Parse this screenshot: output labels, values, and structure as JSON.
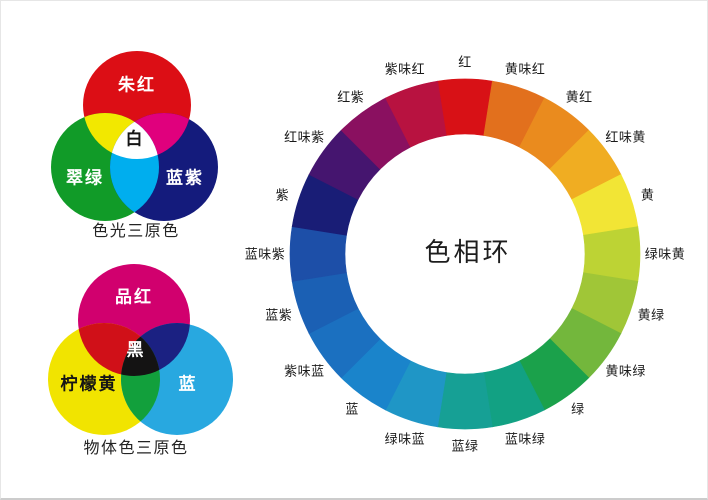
{
  "rgb_venn": {
    "caption": "色光三原色",
    "circle_labels": {
      "red": "朱红",
      "green": "翠绿",
      "blue": "蓝紫"
    },
    "center_label": "白",
    "colors": {
      "red": "#dc0e15",
      "green": "#119b28",
      "blue": "#141b7c",
      "red_green": "#f2e800",
      "red_blue": "#e0007d",
      "green_blue": "#00aeee",
      "center": "#ffffff"
    }
  },
  "cmy_venn": {
    "caption": "物体色三原色",
    "circle_labels": {
      "magenta": "品红",
      "yellow": "柠檬黄",
      "cyan": "蓝"
    },
    "center_label": "黑",
    "colors": {
      "magenta": "#d1006e",
      "yellow": "#f1e400",
      "cyan": "#28a8e0",
      "magenta_yellow": "#d01018",
      "magenta_cyan": "#1b2182",
      "yellow_cyan": "#12a03c",
      "center": "#141313"
    }
  },
  "color_wheel": {
    "title": "色相环",
    "segments": [
      {
        "label": "红",
        "color": "#d81116"
      },
      {
        "label": "黄味红",
        "color": "#e2701d"
      },
      {
        "label": "黄红",
        "color": "#ea8b1e"
      },
      {
        "label": "红味黄",
        "color": "#f0ad22"
      },
      {
        "label": "黄",
        "color": "#f2e535"
      },
      {
        "label": "绿味黄",
        "color": "#bdd334"
      },
      {
        "label": "黄绿",
        "color": "#a0c637"
      },
      {
        "label": "黄味绿",
        "color": "#73b73c"
      },
      {
        "label": "绿",
        "color": "#1ba14b"
      },
      {
        "label": "蓝味绿",
        "color": "#12a183"
      },
      {
        "label": "蓝绿",
        "color": "#16a095"
      },
      {
        "label": "绿味蓝",
        "color": "#1f96c6"
      },
      {
        "label": "蓝",
        "color": "#1a84cb"
      },
      {
        "label": "紫味蓝",
        "color": "#1b70c0"
      },
      {
        "label": "蓝紫",
        "color": "#1b60b4"
      },
      {
        "label": "蓝味紫",
        "color": "#1d4fa8"
      },
      {
        "label": "紫",
        "color": "#191d76"
      },
      {
        "label": "红味紫",
        "color": "#45156f"
      },
      {
        "label": "红紫",
        "color": "#8a1060"
      },
      {
        "label": "紫味红",
        "color": "#b81240"
      }
    ]
  }
}
